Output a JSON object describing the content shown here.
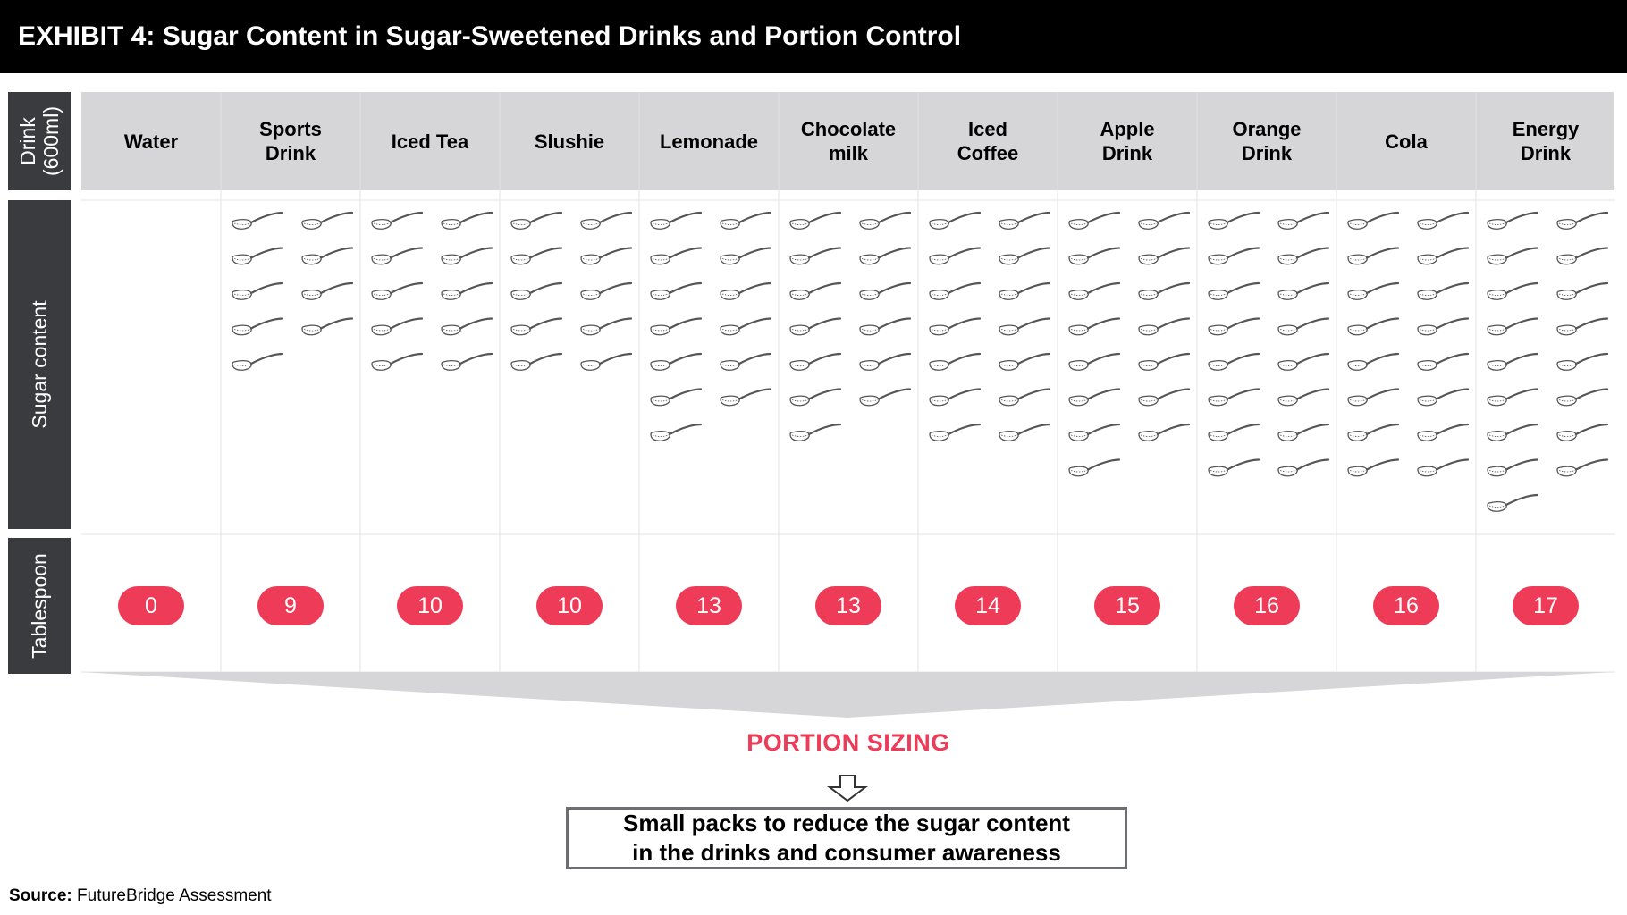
{
  "title": "EXHIBIT 4: Sugar Content in Sugar-Sweetened Drinks and Portion Control",
  "row_labels": {
    "drink": "Drink\n(600ml)",
    "sugar": "Sugar content",
    "tablespoon": "Tablespoon"
  },
  "chart_data": {
    "type": "table",
    "unit": "Tablespoon",
    "categories": [
      "Water",
      "Sports\nDrink",
      "Iced Tea",
      "Slushie",
      "Lemonade",
      "Chocolate\nmilk",
      "Iced\nCoffee",
      "Apple\nDrink",
      "Orange\nDrink",
      "Cola",
      "Energy\nDrink"
    ],
    "values": [
      0,
      9,
      10,
      10,
      13,
      13,
      14,
      15,
      16,
      16,
      17
    ]
  },
  "portion_sizing": "PORTION SIZING",
  "message": "Small packs to reduce the sugar content\nin the drinks and consumer awareness",
  "source": {
    "label": "Source:",
    "text": " FutureBridge Assessment"
  },
  "colors": {
    "accent": "#ee3b57",
    "side_label_bg": "#3a3b3f",
    "header_bg": "#d6d6d9",
    "title_bg": "#000000",
    "icon": "spoon-icon"
  }
}
